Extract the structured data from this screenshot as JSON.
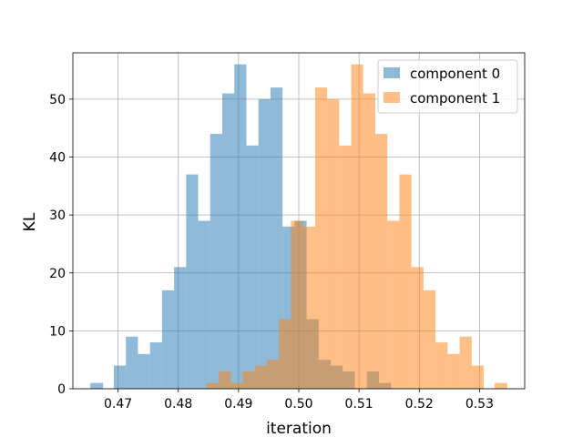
{
  "chart_data": {
    "type": "bar",
    "subtype": "overlapping-histogram",
    "title": "",
    "xlabel": "iteration",
    "ylabel": "KL",
    "xlim": [
      0.4625,
      0.5375
    ],
    "ylim": [
      0,
      58
    ],
    "xticks": [
      0.47,
      0.48,
      0.49,
      0.5,
      0.51,
      0.52,
      0.53
    ],
    "yticks": [
      0,
      10,
      20,
      30,
      40,
      50
    ],
    "grid": true,
    "legend_position": "top-right",
    "series": [
      {
        "name": "component 0",
        "color": "#1f77b4",
        "alpha": 0.5,
        "bins": [
          {
            "start": 0.4654,
            "end": 0.4675,
            "count": 1
          },
          {
            "start": 0.4693,
            "end": 0.4713,
            "count": 4
          },
          {
            "start": 0.4713,
            "end": 0.4733,
            "count": 9
          },
          {
            "start": 0.4733,
            "end": 0.4753,
            "count": 6
          },
          {
            "start": 0.4753,
            "end": 0.4773,
            "count": 8
          },
          {
            "start": 0.4773,
            "end": 0.4793,
            "count": 17
          },
          {
            "start": 0.4793,
            "end": 0.4813,
            "count": 21
          },
          {
            "start": 0.4813,
            "end": 0.4833,
            "count": 37
          },
          {
            "start": 0.4833,
            "end": 0.4853,
            "count": 29
          },
          {
            "start": 0.4853,
            "end": 0.4873,
            "count": 44
          },
          {
            "start": 0.4873,
            "end": 0.4893,
            "count": 51
          },
          {
            "start": 0.4893,
            "end": 0.4913,
            "count": 56
          },
          {
            "start": 0.4913,
            "end": 0.4933,
            "count": 42
          },
          {
            "start": 0.4933,
            "end": 0.4953,
            "count": 50
          },
          {
            "start": 0.4953,
            "end": 0.4973,
            "count": 52
          },
          {
            "start": 0.4973,
            "end": 0.4993,
            "count": 28
          },
          {
            "start": 0.4993,
            "end": 0.5013,
            "count": 29
          },
          {
            "start": 0.5013,
            "end": 0.5033,
            "count": 12
          },
          {
            "start": 0.5033,
            "end": 0.5053,
            "count": 5
          },
          {
            "start": 0.5053,
            "end": 0.5073,
            "count": 4
          },
          {
            "start": 0.5073,
            "end": 0.5093,
            "count": 3
          },
          {
            "start": 0.5113,
            "end": 0.5133,
            "count": 3
          },
          {
            "start": 0.5133,
            "end": 0.5153,
            "count": 1
          }
        ]
      },
      {
        "name": "component 1",
        "color": "#ff7f0e",
        "alpha": 0.5,
        "bins": [
          {
            "start": 0.4847,
            "end": 0.4867,
            "count": 1
          },
          {
            "start": 0.4867,
            "end": 0.4887,
            "count": 3
          },
          {
            "start": 0.4887,
            "end": 0.4907,
            "count": 1
          },
          {
            "start": 0.4907,
            "end": 0.4927,
            "count": 3
          },
          {
            "start": 0.4927,
            "end": 0.4947,
            "count": 4
          },
          {
            "start": 0.4947,
            "end": 0.4967,
            "count": 5
          },
          {
            "start": 0.4967,
            "end": 0.4987,
            "count": 12
          },
          {
            "start": 0.4987,
            "end": 0.5007,
            "count": 29
          },
          {
            "start": 0.5007,
            "end": 0.5027,
            "count": 28
          },
          {
            "start": 0.5027,
            "end": 0.5047,
            "count": 52
          },
          {
            "start": 0.5047,
            "end": 0.5067,
            "count": 50
          },
          {
            "start": 0.5067,
            "end": 0.5087,
            "count": 42
          },
          {
            "start": 0.5087,
            "end": 0.5107,
            "count": 56
          },
          {
            "start": 0.5107,
            "end": 0.5127,
            "count": 51
          },
          {
            "start": 0.5127,
            "end": 0.5147,
            "count": 44
          },
          {
            "start": 0.5147,
            "end": 0.5167,
            "count": 29
          },
          {
            "start": 0.5167,
            "end": 0.5187,
            "count": 37
          },
          {
            "start": 0.5187,
            "end": 0.5207,
            "count": 21
          },
          {
            "start": 0.5207,
            "end": 0.5227,
            "count": 17
          },
          {
            "start": 0.5227,
            "end": 0.5247,
            "count": 8
          },
          {
            "start": 0.5247,
            "end": 0.5267,
            "count": 6
          },
          {
            "start": 0.5267,
            "end": 0.5287,
            "count": 9
          },
          {
            "start": 0.5287,
            "end": 0.5307,
            "count": 4
          },
          {
            "start": 0.5325,
            "end": 0.5346,
            "count": 1
          }
        ]
      }
    ]
  }
}
